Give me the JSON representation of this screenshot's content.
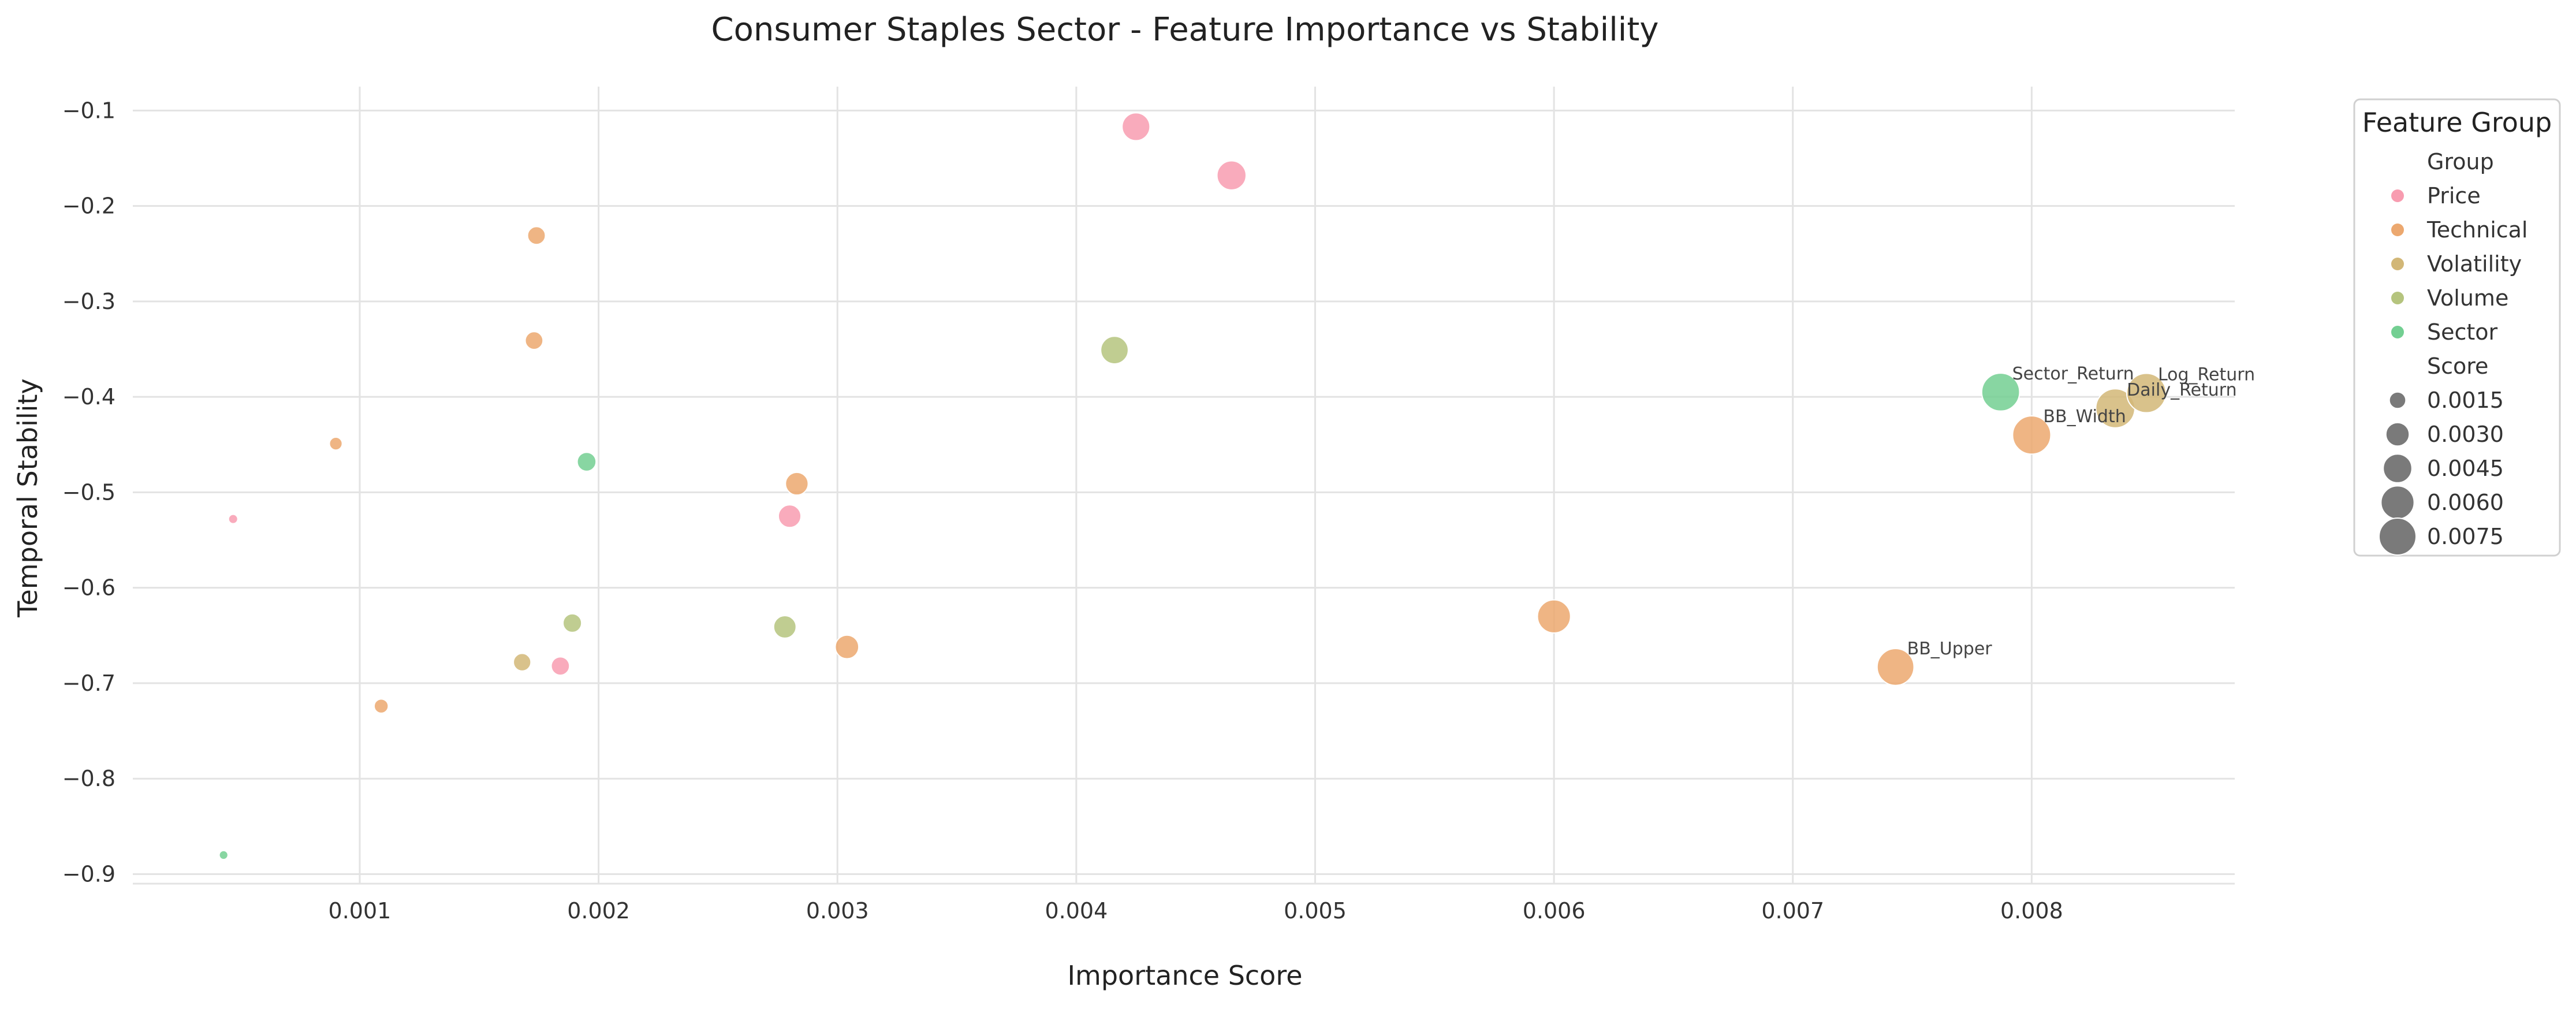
{
  "chart_data": {
    "type": "scatter",
    "title": "Consumer Staples Sector - Feature Importance vs Stability",
    "xlabel": "Importance Score",
    "ylabel": "Temporal Stability",
    "xlim": [
      5e-05,
      0.00885
    ],
    "ylim": [
      -0.91,
      -0.075
    ],
    "x_ticks": [
      0.001,
      0.002,
      0.003,
      0.004,
      0.005,
      0.006,
      0.007,
      0.008
    ],
    "x_tick_labels": [
      "0.001",
      "0.002",
      "0.003",
      "0.004",
      "0.005",
      "0.006",
      "0.007",
      "0.008"
    ],
    "y_ticks": [
      -0.1,
      -0.2,
      -0.3,
      -0.4,
      -0.5,
      -0.6,
      -0.7,
      -0.8,
      -0.9
    ],
    "y_tick_labels": [
      "−0.1",
      "−0.2",
      "−0.3",
      "−0.4",
      "−0.5",
      "−0.6",
      "−0.7",
      "−0.8",
      "−0.9"
    ],
    "grid": true,
    "legend": {
      "title": "Feature Group",
      "placement": "outside-top-right",
      "group_heading": "Group",
      "groups": [
        {
          "name": "Price",
          "color": "#f89cb0"
        },
        {
          "name": "Technical",
          "color": "#eca86f"
        },
        {
          "name": "Volatility",
          "color": "#d2b777"
        },
        {
          "name": "Volume",
          "color": "#b5c47e"
        },
        {
          "name": "Sector",
          "color": "#73cf92"
        }
      ],
      "size_heading": "Score",
      "sizes": [
        {
          "label": "0.0015",
          "value": 0.0015
        },
        {
          "label": "0.0030",
          "value": 0.003
        },
        {
          "label": "0.0045",
          "value": 0.0045
        },
        {
          "label": "0.0060",
          "value": 0.006
        },
        {
          "label": "0.0075",
          "value": 0.0075
        }
      ]
    },
    "points": [
      {
        "x": 0.00425,
        "y": -0.117,
        "group": "Price",
        "label": ""
      },
      {
        "x": 0.00465,
        "y": -0.168,
        "group": "Price",
        "label": ""
      },
      {
        "x": 0.00047,
        "y": -0.528,
        "group": "Price",
        "label": ""
      },
      {
        "x": 0.0028,
        "y": -0.525,
        "group": "Price",
        "label": ""
      },
      {
        "x": 0.00184,
        "y": -0.682,
        "group": "Price",
        "label": ""
      },
      {
        "x": 0.00174,
        "y": -0.231,
        "group": "Technical",
        "label": ""
      },
      {
        "x": 0.00173,
        "y": -0.341,
        "group": "Technical",
        "label": ""
      },
      {
        "x": 0.0009,
        "y": -0.449,
        "group": "Technical",
        "label": ""
      },
      {
        "x": 0.00283,
        "y": -0.491,
        "group": "Technical",
        "label": ""
      },
      {
        "x": 0.00109,
        "y": -0.724,
        "group": "Technical",
        "label": ""
      },
      {
        "x": 0.00304,
        "y": -0.662,
        "group": "Technical",
        "label": ""
      },
      {
        "x": 0.006,
        "y": -0.63,
        "group": "Technical",
        "label": ""
      },
      {
        "x": 0.00743,
        "y": -0.683,
        "group": "Technical",
        "label": "BB_Upper"
      },
      {
        "x": 0.008,
        "y": -0.44,
        "group": "Technical",
        "label": "BB_Width"
      },
      {
        "x": 0.00168,
        "y": -0.678,
        "group": "Volatility",
        "label": ""
      },
      {
        "x": 0.00835,
        "y": -0.412,
        "group": "Volatility",
        "label": "Daily_Return"
      },
      {
        "x": 0.00848,
        "y": -0.396,
        "group": "Volatility",
        "label": "Log_Return"
      },
      {
        "x": 0.00416,
        "y": -0.351,
        "group": "Volume",
        "label": ""
      },
      {
        "x": 0.00189,
        "y": -0.637,
        "group": "Volume",
        "label": ""
      },
      {
        "x": 0.00278,
        "y": -0.641,
        "group": "Volume",
        "label": ""
      },
      {
        "x": 0.00195,
        "y": -0.468,
        "group": "Sector",
        "label": ""
      },
      {
        "x": 0.00043,
        "y": -0.88,
        "group": "Sector",
        "label": ""
      },
      {
        "x": 0.00787,
        "y": -0.395,
        "group": "Sector",
        "label": "Sector_Return"
      }
    ]
  }
}
